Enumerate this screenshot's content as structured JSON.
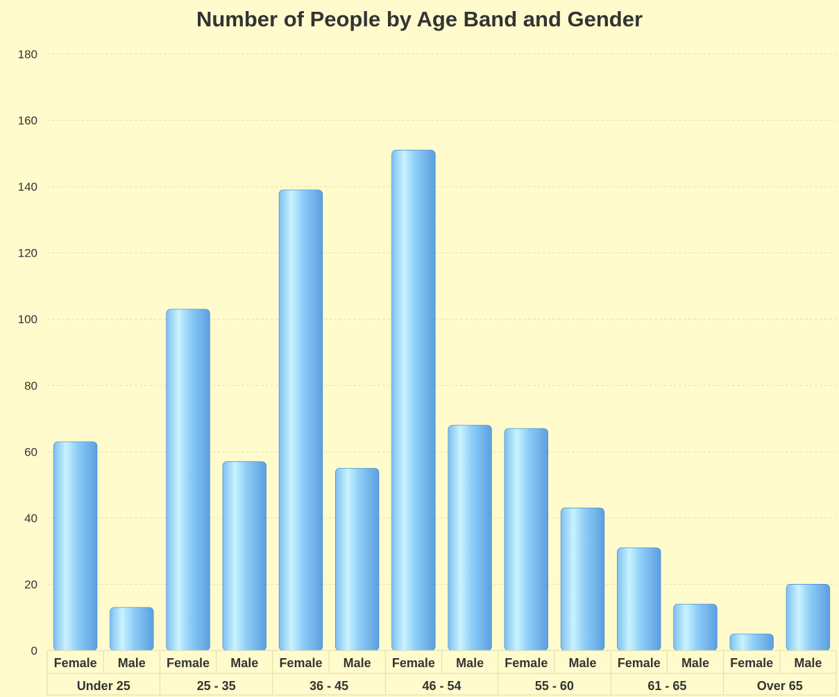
{
  "chart_data": {
    "type": "bar",
    "title": "Number of People by Age Band and Gender",
    "xlabel": "",
    "ylabel": "",
    "ylim": [
      0,
      180
    ],
    "yticks": [
      0,
      20,
      40,
      60,
      80,
      100,
      120,
      140,
      160,
      180
    ],
    "grid": true,
    "groups": [
      {
        "label": "Under 25",
        "bars": [
          {
            "category": "Female",
            "value": 63
          },
          {
            "category": "Male",
            "value": 13
          }
        ]
      },
      {
        "label": "25 - 35",
        "bars": [
          {
            "category": "Female",
            "value": 103
          },
          {
            "category": "Male",
            "value": 57
          }
        ]
      },
      {
        "label": "36 - 45",
        "bars": [
          {
            "category": "Female",
            "value": 139
          },
          {
            "category": "Male",
            "value": 55
          }
        ]
      },
      {
        "label": "46 - 54",
        "bars": [
          {
            "category": "Female",
            "value": 151
          },
          {
            "category": "Male",
            "value": 68
          }
        ]
      },
      {
        "label": "55 - 60",
        "bars": [
          {
            "category": "Female",
            "value": 67
          },
          {
            "category": "Male",
            "value": 43
          }
        ]
      },
      {
        "label": "61 - 65",
        "bars": [
          {
            "category": "Female",
            "value": 31
          },
          {
            "category": "Male",
            "value": 14
          }
        ]
      },
      {
        "label": "Over 65",
        "bars": [
          {
            "category": "Female",
            "value": 5
          },
          {
            "category": "Male",
            "value": 20
          }
        ]
      }
    ],
    "colors": {
      "background": "#fffbcc",
      "bar_light": "#c9f3ff",
      "bar_mid": "#8ccdf7",
      "bar_dark": "#5c9fe0",
      "bar_edge": "#4a8fd4",
      "grid": "#e6dfa8",
      "axis_text": "#333333",
      "category_border": "#e2d9a6"
    }
  }
}
